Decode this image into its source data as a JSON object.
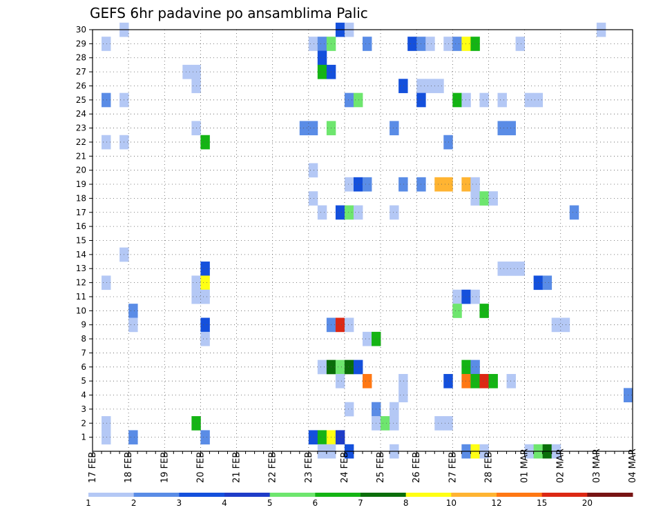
{
  "chart_data": {
    "type": "heatmap",
    "title": "GEFS 6hr padavine po ansamblima Palic",
    "y_ticks": [
      1,
      2,
      3,
      4,
      5,
      6,
      7,
      8,
      9,
      10,
      11,
      12,
      13,
      14,
      15,
      16,
      17,
      18,
      19,
      20,
      21,
      22,
      23,
      24,
      25,
      26,
      27,
      28,
      29,
      30
    ],
    "x_tick_labels": [
      "17 FEB",
      "18 FEB",
      "19 FEB",
      "20 FEB",
      "21 FEB",
      "22 FEB",
      "23 FEB",
      "24 FEB",
      "25 FEB",
      "26 FEB",
      "27 FEB",
      "28 FEB",
      "01 MAR",
      "02 MAR",
      "03 MAR",
      "04 MAR"
    ],
    "xlim_days": [
      0,
      15
    ],
    "ylim": [
      0,
      30
    ],
    "steps_per_day": 4,
    "grid": true,
    "legend": {
      "placement": "bottom",
      "labels": [
        "1",
        "2",
        "3",
        "4",
        "5",
        "6",
        "7",
        "8",
        "10",
        "12",
        "15",
        "20"
      ],
      "colors": [
        "#b4c8f5",
        "#5a8ce6",
        "#1450dc",
        "#1e3cc8",
        "#6ee66e",
        "#14b414",
        "#0a6e0a",
        "#ffff14",
        "#ffb432",
        "#ff7814",
        "#dc2814",
        "#781414"
      ]
    },
    "cells": [
      {
        "m": 30,
        "t": [
          [
            3,
            0
          ],
          [
            27,
            2
          ],
          [
            28,
            0
          ],
          [
            56,
            0
          ]
        ]
      },
      {
        "m": 29,
        "t": [
          [
            1,
            0
          ],
          [
            24,
            0
          ],
          [
            25,
            1
          ],
          [
            26,
            4
          ],
          [
            30,
            1
          ],
          [
            35,
            2
          ],
          [
            36,
            1
          ],
          [
            37,
            0
          ],
          [
            39,
            0
          ],
          [
            40,
            1
          ],
          [
            41,
            7
          ],
          [
            42,
            5
          ],
          [
            47,
            0
          ]
        ]
      },
      {
        "m": 28,
        "t": [
          [
            25,
            2
          ]
        ]
      },
      {
        "m": 27,
        "t": [
          [
            10,
            0
          ],
          [
            11,
            0
          ],
          [
            25,
            5
          ],
          [
            26,
            2
          ]
        ]
      },
      {
        "m": 26,
        "t": [
          [
            11,
            0
          ],
          [
            34,
            2
          ],
          [
            36,
            0
          ],
          [
            37,
            0
          ],
          [
            38,
            0
          ]
        ]
      },
      {
        "m": 25,
        "t": [
          [
            1,
            1
          ],
          [
            3,
            0
          ],
          [
            28,
            1
          ],
          [
            29,
            4
          ],
          [
            36,
            2
          ],
          [
            40,
            5
          ],
          [
            41,
            0
          ],
          [
            43,
            0
          ],
          [
            45,
            0
          ],
          [
            48,
            0
          ],
          [
            49,
            0
          ]
        ]
      },
      {
        "m": 23,
        "t": [
          [
            11,
            0
          ],
          [
            23,
            1
          ],
          [
            24,
            1
          ],
          [
            26,
            4
          ],
          [
            33,
            1
          ],
          [
            45,
            1
          ],
          [
            46,
            1
          ]
        ]
      },
      {
        "m": 22,
        "t": [
          [
            1,
            0
          ],
          [
            3,
            0
          ],
          [
            12,
            5
          ],
          [
            39,
            1
          ]
        ]
      },
      {
        "m": 20,
        "t": [
          [
            24,
            0
          ]
        ]
      },
      {
        "m": 19,
        "t": [
          [
            28,
            0
          ],
          [
            29,
            2
          ],
          [
            30,
            1
          ],
          [
            34,
            1
          ],
          [
            36,
            1
          ],
          [
            38,
            8
          ],
          [
            39,
            8
          ],
          [
            41,
            8
          ],
          [
            42,
            0
          ]
        ]
      },
      {
        "m": 18,
        "t": [
          [
            24,
            0
          ],
          [
            42,
            0
          ],
          [
            43,
            4
          ],
          [
            44,
            0
          ]
        ]
      },
      {
        "m": 17,
        "t": [
          [
            25,
            0
          ],
          [
            27,
            2
          ],
          [
            28,
            4
          ],
          [
            29,
            0
          ],
          [
            33,
            0
          ],
          [
            53,
            1
          ]
        ]
      },
      {
        "m": 14,
        "t": [
          [
            3,
            0
          ]
        ]
      },
      {
        "m": 13,
        "t": [
          [
            12,
            2
          ],
          [
            45,
            0
          ],
          [
            46,
            0
          ],
          [
            47,
            0
          ]
        ]
      },
      {
        "m": 12,
        "t": [
          [
            1,
            0
          ],
          [
            11,
            0
          ],
          [
            12,
            7
          ],
          [
            49,
            2
          ],
          [
            50,
            1
          ]
        ]
      },
      {
        "m": 11,
        "t": [
          [
            11,
            0
          ],
          [
            12,
            0
          ],
          [
            40,
            0
          ],
          [
            41,
            2
          ],
          [
            42,
            0
          ]
        ]
      },
      {
        "m": 10,
        "t": [
          [
            4,
            1
          ],
          [
            40,
            4
          ],
          [
            43,
            5
          ]
        ]
      },
      {
        "m": 9,
        "t": [
          [
            4,
            0
          ],
          [
            12,
            2
          ],
          [
            26,
            1
          ],
          [
            27,
            10
          ],
          [
            28,
            0
          ],
          [
            51,
            0
          ],
          [
            52,
            0
          ]
        ]
      },
      {
        "m": 8,
        "t": [
          [
            12,
            0
          ],
          [
            30,
            0
          ],
          [
            31,
            5
          ]
        ]
      },
      {
        "m": 6,
        "t": [
          [
            25,
            0
          ],
          [
            26,
            6
          ],
          [
            27,
            4
          ],
          [
            28,
            6
          ],
          [
            29,
            2
          ],
          [
            41,
            5
          ],
          [
            42,
            1
          ]
        ]
      },
      {
        "m": 5,
        "t": [
          [
            27,
            0
          ],
          [
            30,
            9
          ],
          [
            34,
            0
          ],
          [
            39,
            2
          ],
          [
            41,
            9
          ],
          [
            42,
            5
          ],
          [
            43,
            10
          ],
          [
            44,
            5
          ],
          [
            46,
            0
          ]
        ]
      },
      {
        "m": 4,
        "t": [
          [
            34,
            0
          ],
          [
            59,
            1
          ]
        ]
      },
      {
        "m": 3,
        "t": [
          [
            28,
            0
          ],
          [
            31,
            1
          ],
          [
            33,
            0
          ]
        ]
      },
      {
        "m": 2,
        "t": [
          [
            1,
            0
          ],
          [
            11,
            5
          ],
          [
            31,
            0
          ],
          [
            32,
            4
          ],
          [
            33,
            0
          ],
          [
            38,
            0
          ],
          [
            39,
            0
          ]
        ]
      },
      {
        "m": 1,
        "t": [
          [
            1,
            0
          ],
          [
            4,
            1
          ],
          [
            12,
            1
          ],
          [
            24,
            2
          ],
          [
            25,
            5
          ],
          [
            26,
            7
          ],
          [
            27,
            3
          ]
        ]
      },
      {
        "m": 0,
        "t": [
          [
            25,
            0
          ],
          [
            26,
            0
          ],
          [
            28,
            2
          ],
          [
            33,
            0
          ],
          [
            41,
            1
          ],
          [
            42,
            7
          ],
          [
            43,
            0
          ],
          [
            48,
            0
          ],
          [
            49,
            4
          ],
          [
            50,
            6
          ],
          [
            51,
            0
          ]
        ]
      }
    ]
  }
}
